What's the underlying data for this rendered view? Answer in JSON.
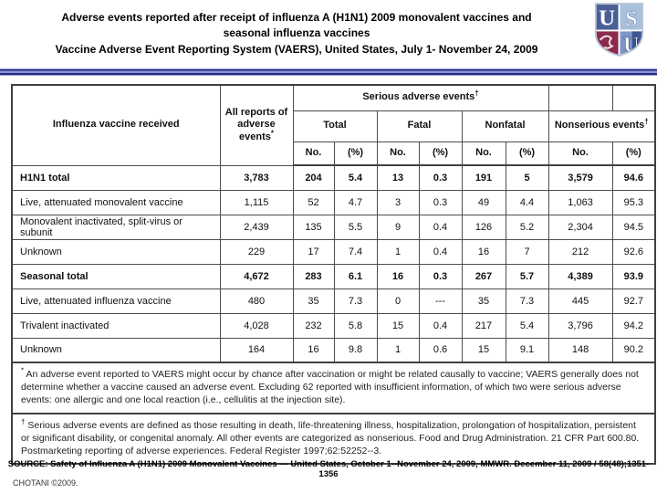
{
  "title": {
    "line1": "Adverse events reported after receipt of influenza A (H1N1) 2009 monovalent vaccines and",
    "line2": "seasonal influenza vaccines",
    "line3": "Vaccine Adverse Event Reporting System (VAERS), United States, July 1- November 24, 2009"
  },
  "logo": {
    "letters": {
      "u1": "U",
      "s": "S",
      "u2": "U"
    },
    "colors": {
      "top_left": "#4a5f96",
      "top_right": "#a9c0dd",
      "bottom_left": "#8c2a4e",
      "bottom_right": "#7b97c6",
      "bottom_right_dark": "#3d5490"
    }
  },
  "table": {
    "col_headers": {
      "vaccine": "Influenza vaccine received",
      "all_reports": {
        "label": "All reports of adverse events",
        "sup": "*"
      },
      "serious": {
        "label": "Serious adverse events",
        "sup": "†"
      },
      "total": "Total",
      "fatal": "Fatal",
      "nonfatal": "Nonfatal",
      "nonserious": {
        "label": "Nonserious events",
        "sup": "†"
      },
      "no": "No.",
      "pct": "(%)"
    },
    "rows": [
      {
        "label": "H1N1 total",
        "bold": true,
        "values": [
          "3,783",
          "204",
          "5.4",
          "13",
          "0.3",
          "191",
          "5",
          "3,579",
          "94.6"
        ]
      },
      {
        "label": "Live, attenuated monovalent vaccine",
        "bold": false,
        "values": [
          "1,115",
          "52",
          "4.7",
          "3",
          "0.3",
          "49",
          "4.4",
          "1,063",
          "95.3"
        ]
      },
      {
        "label": "Monovalent inactivated, split-virus or subunit",
        "bold": false,
        "values": [
          "2,439",
          "135",
          "5.5",
          "9",
          "0.4",
          "126",
          "5.2",
          "2,304",
          "94.5"
        ]
      },
      {
        "label": "Unknown",
        "bold": false,
        "values": [
          "229",
          "17",
          "7.4",
          "1",
          "0.4",
          "16",
          "7",
          "212",
          "92.6"
        ]
      },
      {
        "label": "Seasonal total",
        "bold": true,
        "values": [
          "4,672",
          "283",
          "6.1",
          "16",
          "0.3",
          "267",
          "5.7",
          "4,389",
          "93.9"
        ]
      },
      {
        "label": "Live, attenuated influenza vaccine",
        "bold": false,
        "values": [
          "480",
          "35",
          "7.3",
          "0",
          "---",
          "35",
          "7.3",
          "445",
          "92.7"
        ]
      },
      {
        "label": "Trivalent inactivated",
        "bold": false,
        "values": [
          "4,028",
          "232",
          "5.8",
          "15",
          "0.4",
          "217",
          "5.4",
          "3,796",
          "94.2"
        ]
      },
      {
        "label": "Unknown",
        "bold": false,
        "values": [
          "164",
          "16",
          "9.8",
          "1",
          "0.6",
          "15",
          "9.1",
          "148",
          "90.2"
        ]
      }
    ]
  },
  "footnotes": {
    "asterisk": {
      "sup": "*",
      "text": " An adverse event reported to VAERS might occur by chance after vaccination or might be related causally to vaccine; VAERS generally does not determine whether a vaccine caused an adverse event. Excluding 62 reported with insufficient information, of which two were serious adverse events: one allergic and one local reaction (i.e., cellulitis at the injection site)."
    },
    "dagger": {
      "sup": "†",
      "text": " Serious adverse events are defined as those resulting in death, life-threatening illness, hospitalization, prolongation of hospitalization, persistent or significant disability, or congenital anomaly. All other events are categorized as nonserious. Food and Drug Administration. 21 CFR Part 600.80. Postmarketing reporting of adverse experiences. Federal Register 1997;62:52252--3."
    }
  },
  "source": "SOURCE: Safety of Influenza A (H1N1) 2009 Monovalent Vaccines --- United States, October 1--November 24, 2009, MMWR. December 11, 2009 / 58(48);1351-1356",
  "credit": "CHOTANI ©2009."
}
